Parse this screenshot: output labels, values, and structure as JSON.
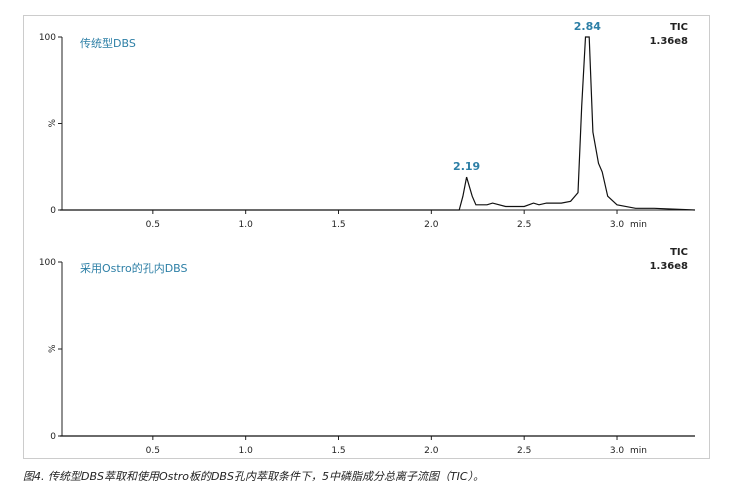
{
  "caption": "图4. 传统型DBS萃取和使用Ostro板的DBS孔内萃取条件下，5中磷脂成分总离子流图（TIC）。",
  "chart_data": [
    {
      "type": "line",
      "title": "传统型DBS",
      "trace_label": "TIC",
      "intensity": "1.36e8",
      "ylabel": "%",
      "xunit": "min",
      "xlim": [
        0,
        3.42
      ],
      "ylim": [
        0,
        100
      ],
      "xticks": [
        "0.5",
        "1.0",
        "1.5",
        "2.0",
        "2.5",
        "3.0"
      ],
      "yticks": [
        "0",
        "100"
      ],
      "peak_labels": [
        {
          "x": 2.19,
          "label": "2.19"
        },
        {
          "x": 2.84,
          "label": "2.84"
        }
      ],
      "x": [
        0,
        2.15,
        2.17,
        2.19,
        2.22,
        2.24,
        2.3,
        2.33,
        2.4,
        2.5,
        2.55,
        2.58,
        2.62,
        2.7,
        2.75,
        2.79,
        2.81,
        2.83,
        2.85,
        2.87,
        2.9,
        2.92,
        2.95,
        3.0,
        3.1,
        3.2,
        3.42
      ],
      "y": [
        0,
        0,
        8,
        19,
        8,
        3,
        3,
        4,
        2,
        2,
        4,
        3,
        4,
        4,
        5,
        10,
        60,
        100,
        100,
        45,
        27,
        22,
        8,
        3,
        1,
        1,
        0
      ]
    },
    {
      "type": "line",
      "title": "采用Ostro的孔内DBS",
      "trace_label": "TIC",
      "intensity": "1.36e8",
      "ylabel": "%",
      "xunit": "min",
      "xlim": [
        0,
        3.42
      ],
      "ylim": [
        0,
        100
      ],
      "xticks": [
        "0.5",
        "1.0",
        "1.5",
        "2.0",
        "2.5",
        "3.0"
      ],
      "yticks": [
        "0",
        "100"
      ],
      "peak_labels": [],
      "x": [
        0,
        3.42
      ],
      "y": [
        0,
        0
      ]
    }
  ]
}
